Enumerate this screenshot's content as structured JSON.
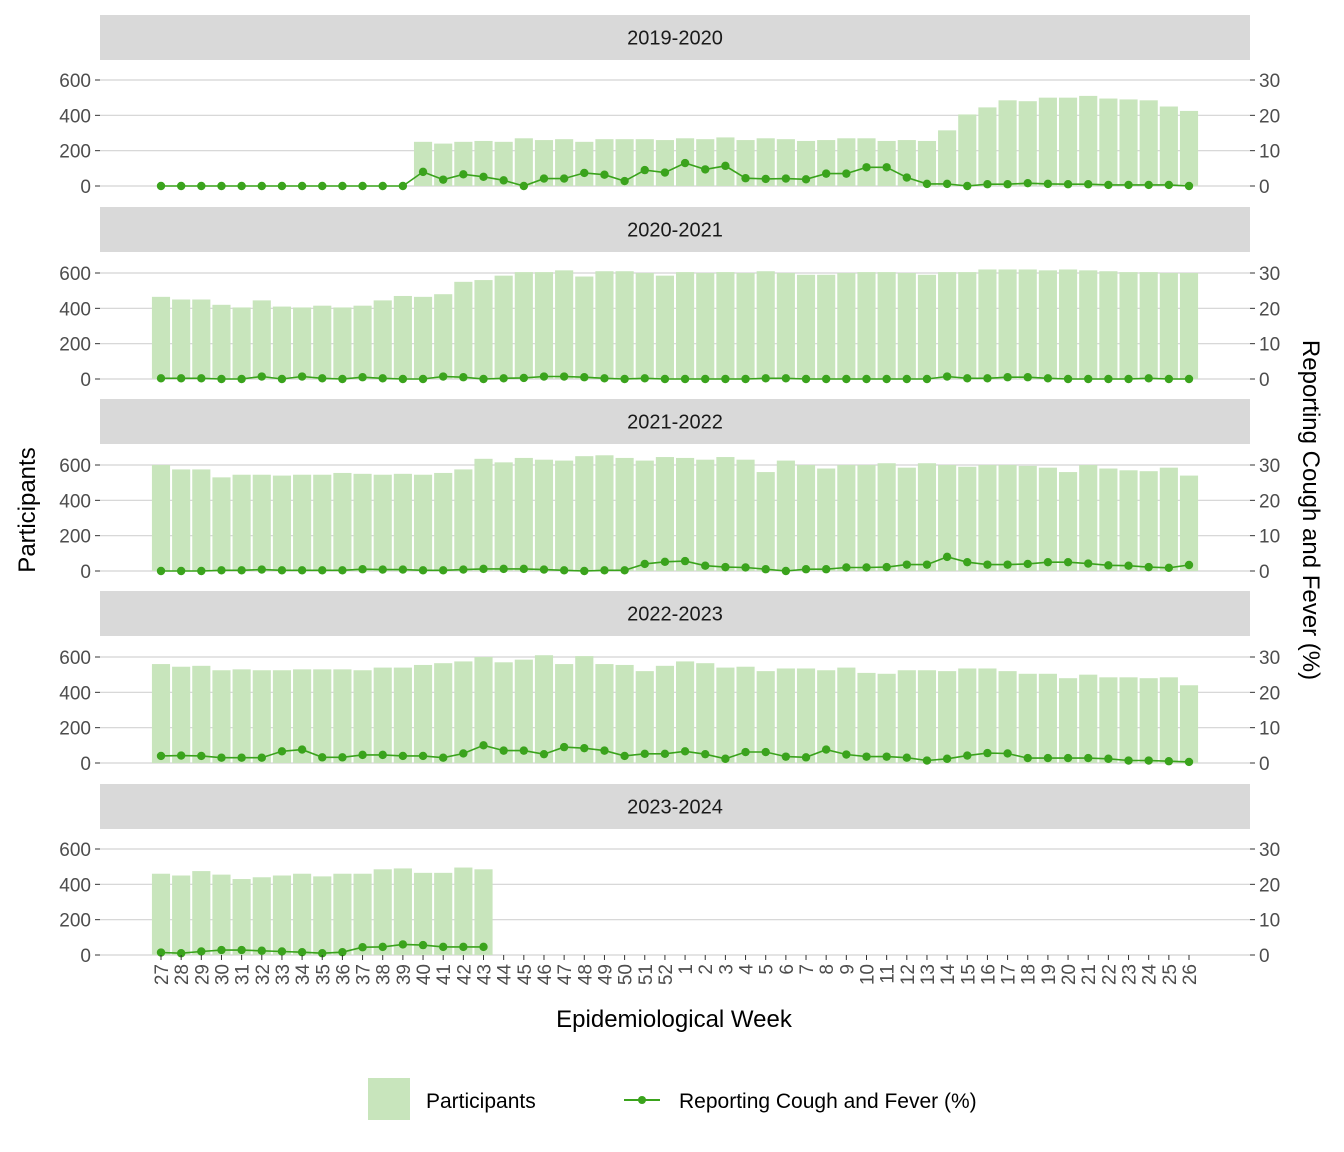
{
  "chart_data": {
    "type": "bar+line",
    "facet_by": "season",
    "xlabel": "Epidemiological Week",
    "ylabel_left": "Participants",
    "ylabel_right": "Reporting Cough and Fever (%)",
    "ylim_left": [
      0,
      600
    ],
    "ylim_right": [
      0,
      30
    ],
    "yticks_left": [
      0,
      200,
      400,
      600
    ],
    "yticks_right": [
      0,
      10,
      20,
      30
    ],
    "grid": true,
    "legend_position": "bottom",
    "legend": [
      {
        "name": "Participants",
        "kind": "bar",
        "color": "#c8e5bc"
      },
      {
        "name": "Reporting Cough and Fever (%)",
        "kind": "line",
        "color": "#3aa31c"
      }
    ],
    "weeks": [
      "27",
      "28",
      "29",
      "30",
      "31",
      "32",
      "33",
      "34",
      "35",
      "36",
      "37",
      "38",
      "39",
      "40",
      "41",
      "42",
      "43",
      "44",
      "45",
      "46",
      "47",
      "48",
      "49",
      "50",
      "51",
      "52",
      "1",
      "2",
      "3",
      "4",
      "5",
      "6",
      "7",
      "8",
      "9",
      "10",
      "11",
      "12",
      "13",
      "14",
      "15",
      "16",
      "17",
      "18",
      "19",
      "20",
      "21",
      "22",
      "23",
      "24",
      "25",
      "26"
    ],
    "facets": [
      {
        "label": "2019-2020",
        "participants": [
          0,
          0,
          0,
          0,
          0,
          0,
          0,
          0,
          0,
          0,
          0,
          0,
          0,
          250,
          240,
          250,
          255,
          250,
          270,
          260,
          265,
          250,
          265,
          265,
          265,
          260,
          270,
          265,
          275,
          260,
          270,
          265,
          255,
          260,
          270,
          270,
          255,
          260,
          255,
          315,
          405,
          445,
          485,
          480,
          500,
          500,
          510,
          495,
          490,
          485,
          450,
          425
        ],
        "cough_fever_pct": [
          0,
          0,
          0,
          0,
          0,
          0,
          0,
          0,
          0,
          0,
          0,
          0,
          0,
          4,
          1.8,
          3.3,
          2.6,
          1.6,
          0,
          2.1,
          2.1,
          3.7,
          3.2,
          1.4,
          4.5,
          3.8,
          6.5,
          4.7,
          5.7,
          2.2,
          2.0,
          2.1,
          1.9,
          3.5,
          3.5,
          5.3,
          5.3,
          2.4,
          0.6,
          0.6,
          0,
          0.5,
          0.5,
          0.8,
          0.6,
          0.5,
          0.5,
          0.3,
          0.3,
          0.3,
          0.3,
          0
        ]
      },
      {
        "label": "2020-2021",
        "participants": [
          465,
          450,
          450,
          420,
          405,
          445,
          410,
          405,
          415,
          405,
          415,
          445,
          470,
          465,
          480,
          550,
          560,
          585,
          605,
          605,
          615,
          580,
          610,
          610,
          600,
          585,
          605,
          600,
          605,
          600,
          610,
          600,
          590,
          590,
          600,
          605,
          605,
          600,
          590,
          605,
          605,
          620,
          620,
          620,
          615,
          620,
          615,
          610,
          605,
          605,
          600,
          600
        ],
        "cough_fever_pct": [
          0.2,
          0.2,
          0.2,
          0,
          0,
          0.7,
          0,
          0.7,
          0.2,
          0,
          0.5,
          0.2,
          0,
          0,
          0.7,
          0.5,
          0,
          0.2,
          0.3,
          0.7,
          0.7,
          0.5,
          0.2,
          0,
          0.2,
          0,
          0,
          0,
          0,
          0,
          0.2,
          0.2,
          0,
          0,
          0,
          0,
          0,
          0,
          0,
          0.7,
          0.2,
          0.2,
          0.5,
          0.5,
          0.2,
          0,
          0,
          0,
          0,
          0.2,
          0,
          0
        ]
      },
      {
        "label": "2021-2022",
        "participants": [
          600,
          575,
          575,
          530,
          545,
          545,
          540,
          545,
          545,
          555,
          550,
          545,
          550,
          545,
          555,
          575,
          635,
          615,
          640,
          630,
          625,
          650,
          655,
          640,
          625,
          645,
          640,
          630,
          645,
          630,
          560,
          625,
          600,
          580,
          600,
          600,
          610,
          585,
          610,
          600,
          590,
          600,
          600,
          595,
          585,
          560,
          600,
          580,
          570,
          565,
          585,
          540
        ],
        "cough_fever_pct": [
          0,
          0,
          0,
          0.2,
          0.2,
          0.4,
          0.2,
          0.2,
          0.2,
          0.2,
          0.5,
          0.4,
          0.4,
          0.2,
          0.2,
          0.4,
          0.6,
          0.6,
          0.6,
          0.4,
          0.2,
          0,
          0.2,
          0.2,
          2,
          2.6,
          2.8,
          1.5,
          1.1,
          1,
          0.5,
          0,
          0.5,
          0.5,
          1,
          1,
          1.1,
          1.8,
          1.8,
          4,
          2.5,
          1.8,
          1.8,
          2,
          2.5,
          2.5,
          2.1,
          1.6,
          1.5,
          1.1,
          0.9,
          1.7
        ]
      },
      {
        "label": "2022-2023",
        "participants": [
          560,
          545,
          550,
          525,
          530,
          525,
          525,
          530,
          530,
          530,
          525,
          540,
          540,
          555,
          565,
          575,
          600,
          570,
          585,
          610,
          560,
          605,
          560,
          555,
          520,
          550,
          575,
          565,
          540,
          545,
          520,
          535,
          535,
          525,
          540,
          510,
          505,
          525,
          525,
          520,
          535,
          535,
          520,
          505,
          505,
          480,
          500,
          485,
          485,
          480,
          485,
          440
        ],
        "cough_fever_pct": [
          2,
          2.1,
          2,
          1.5,
          1.5,
          1.5,
          3.3,
          3.8,
          1.6,
          1.6,
          2.3,
          2.3,
          2,
          2,
          1.5,
          2.7,
          5,
          3.5,
          3.5,
          2.5,
          4.5,
          4.2,
          3.5,
          2,
          2.6,
          2.6,
          3.3,
          2.5,
          1.2,
          3.1,
          3.1,
          1.8,
          1.6,
          3.8,
          2.4,
          1.8,
          1.8,
          1.5,
          0.7,
          1.2,
          2.1,
          2.8,
          2.7,
          1.4,
          1.4,
          1.4,
          1.4,
          1.2,
          0.7,
          0.7,
          0.5,
          0.3
        ]
      },
      {
        "label": "2023-2024",
        "participants": [
          460,
          450,
          475,
          455,
          430,
          440,
          450,
          460,
          445,
          460,
          460,
          485,
          490,
          465,
          465,
          495,
          485
        ],
        "cough_fever_pct": [
          0.7,
          0.5,
          1,
          1.4,
          1.4,
          1.2,
          1,
          0.8,
          0.5,
          0.8,
          2.2,
          2.3,
          3,
          2.8,
          2.3,
          2.3,
          2.3
        ]
      }
    ]
  }
}
